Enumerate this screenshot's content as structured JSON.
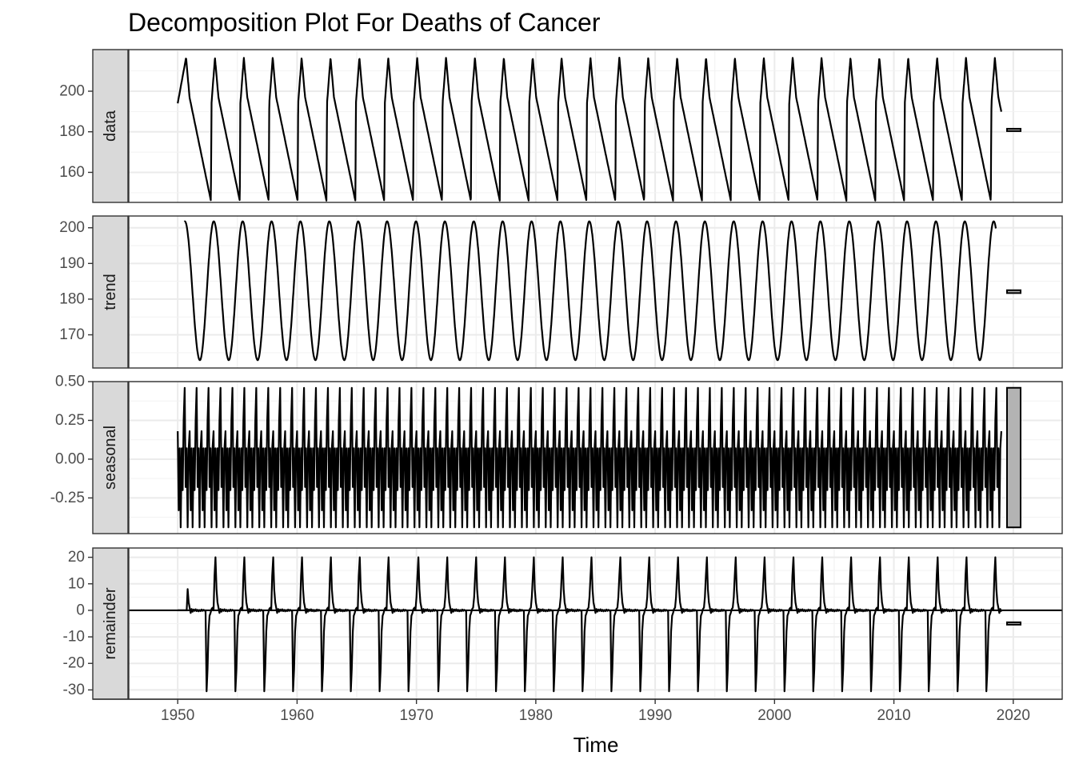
{
  "chart_data": {
    "type": "line",
    "title": "Decomposition Plot For Deaths of Cancer",
    "xlabel": "Time",
    "xlim": [
      1945.9,
      2024.1
    ],
    "x_ticks": [
      "1950",
      "1960",
      "1970",
      "1980",
      "1990",
      "2000",
      "2010",
      "2020"
    ],
    "x_start": 1950.0,
    "x_end": 2019.0,
    "frequency": 12,
    "panels": [
      {
        "name": "data",
        "ylim": [
          145.2,
          220.5
        ],
        "y_ticks": [
          "160",
          "180",
          "200"
        ],
        "cycle_years": 2.42,
        "pattern": "rise-then-linear-decline",
        "max": 216.5,
        "min": 146.0,
        "range_bar": [
          180.5,
          181.5
        ]
      },
      {
        "name": "trend",
        "ylim": [
          160.7,
          203.3
        ],
        "y_ticks": [
          "170",
          "180",
          "190",
          "200"
        ],
        "cycle_years": 2.42,
        "pattern": "sawtooth-wave",
        "max": 201.8,
        "min": 162.9,
        "range_bar": [
          181.7,
          182.5
        ]
      },
      {
        "name": "seasonal",
        "ylim": [
          -0.48,
          0.5
        ],
        "y_ticks": [
          "-0.25",
          "0.00",
          "0.25",
          "0.50"
        ],
        "cycle_years": 1.0,
        "pattern": "repeating-12-month",
        "max": 0.46,
        "min": -0.44,
        "range_bar": [
          -0.44,
          0.46
        ]
      },
      {
        "name": "remainder",
        "ylim": [
          -33.5,
          23.5
        ],
        "y_ticks": [
          "-30",
          "-20",
          "-10",
          "0",
          "10",
          "20"
        ],
        "cycle_years": 2.42,
        "pattern": "spikes",
        "max": 20.0,
        "min": -30.5,
        "range_bar": [
          -5.3,
          -4.5
        ]
      }
    ]
  }
}
